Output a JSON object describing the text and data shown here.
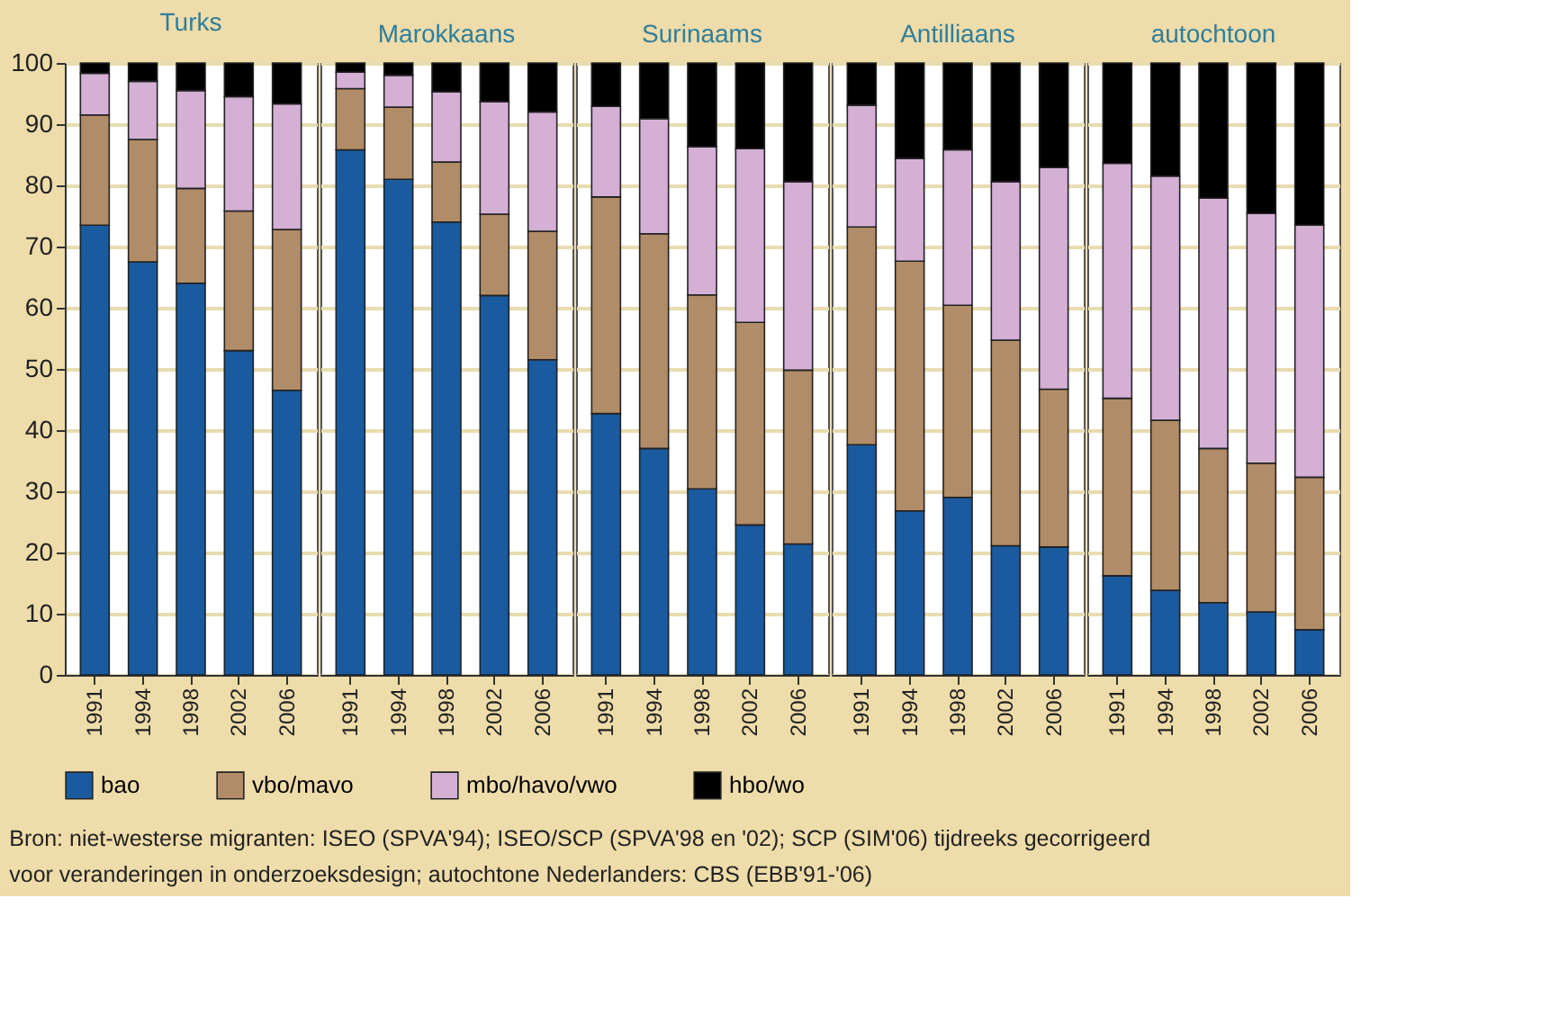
{
  "chart_data": [
    {
      "type": "bar",
      "stacked": true,
      "title": "Turks",
      "categories": [
        "1991",
        "1994",
        "1998",
        "2002",
        "2006"
      ],
      "ylim": [
        0,
        100
      ],
      "yticks": [
        0,
        10,
        20,
        30,
        40,
        50,
        60,
        70,
        80,
        90,
        100
      ],
      "grid": "y",
      "legend": "bottom",
      "annotations": [
        "Bron: niet-westerse migranten: ISEO (SPVA'94); ISEO/SCP (SPVA'98 en '02); SCP (SIM'06) tijdreeks gecorrigeerd voor veranderingen in onderzoeksdesign; autochtone Nederlanders: CBS (EBB'91-'06)"
      ],
      "series": [
        {
          "name": "bao",
          "color": "#1a5a9e",
          "values": [
            73.5,
            67.5,
            64,
            53,
            46.5
          ]
        },
        {
          "name": "vbo/mavo",
          "color": "#b08c68",
          "values": [
            18,
            20,
            15.5,
            22.8,
            26.3
          ]
        },
        {
          "name": "mbo/havo/vwo",
          "color": "#d4b0d4",
          "values": [
            6.8,
            9.5,
            16,
            18.7,
            20.5
          ]
        },
        {
          "name": "hbo/wo",
          "color": "#000000",
          "values": [
            1.7,
            3,
            4.5,
            5.5,
            6.7
          ]
        }
      ]
    },
    {
      "type": "bar",
      "stacked": true,
      "title": "Marokkaans",
      "categories": [
        "1991",
        "1994",
        "1998",
        "2002",
        "2006"
      ],
      "ylim": [
        0,
        100
      ],
      "yticks": [
        0,
        10,
        20,
        30,
        40,
        50,
        60,
        70,
        80,
        90,
        100
      ],
      "grid": "y",
      "legend": "bottom",
      "tick_labels": "x",
      "series": [
        {
          "name": "bao",
          "color": "#1a5a9e",
          "values": [
            85.8,
            81,
            74,
            62,
            51.5
          ]
        },
        {
          "name": "vbo/mavo",
          "color": "#b08c68",
          "values": [
            10,
            11.8,
            9.8,
            13.3,
            21
          ]
        },
        {
          "name": "mbo/havo/vwo",
          "color": "#d4b0d4",
          "values": [
            2.7,
            5.2,
            11.5,
            18.4,
            19.5
          ]
        },
        {
          "name": "hbo/wo",
          "color": "#000000",
          "values": [
            1.5,
            2,
            4.7,
            6.3,
            8
          ]
        }
      ]
    },
    {
      "type": "bar",
      "stacked": true,
      "title": "Surinaams",
      "categories": [
        "1991",
        "1994",
        "1998",
        "2002",
        "2006"
      ],
      "ylim": [
        0,
        100
      ],
      "yticks": [
        0,
        10,
        20,
        30,
        40,
        50,
        60,
        70,
        80,
        90,
        100
      ],
      "grid": "y",
      "legend": "bottom",
      "tick_labels": "x",
      "series": [
        {
          "name": "bao",
          "color": "#1a5a9e",
          "values": [
            42.7,
            37,
            30.4,
            24.5,
            21.4
          ]
        },
        {
          "name": "vbo/mavo",
          "color": "#b08c68",
          "values": [
            35.4,
            35.1,
            31.7,
            33.1,
            28.4
          ]
        },
        {
          "name": "mbo/havo/vwo",
          "color": "#d4b0d4",
          "values": [
            14.8,
            18.8,
            24.2,
            28.4,
            30.8
          ]
        },
        {
          "name": "hbo/wo",
          "color": "#000000",
          "values": [
            7.1,
            9.1,
            13.7,
            14,
            19.4
          ]
        }
      ]
    },
    {
      "type": "bar",
      "stacked": true,
      "title": "Antilliaans",
      "categories": [
        "1991",
        "1994",
        "1998",
        "2002",
        "2006"
      ],
      "ylim": [
        0,
        100
      ],
      "yticks": [
        0,
        10,
        20,
        30,
        40,
        50,
        60,
        70,
        80,
        90,
        100
      ],
      "grid": "y",
      "legend": "bottom",
      "tick_labels": "x",
      "series": [
        {
          "name": "bao",
          "color": "#1a5a9e",
          "values": [
            37.6,
            26.8,
            29,
            21.1,
            20.9
          ]
        },
        {
          "name": "vbo/mavo",
          "color": "#b08c68",
          "values": [
            35.6,
            40.8,
            31.4,
            33.6,
            25.8
          ]
        },
        {
          "name": "mbo/havo/vwo",
          "color": "#d4b0d4",
          "values": [
            19.9,
            16.8,
            25.4,
            25.9,
            36.2
          ]
        },
        {
          "name": "hbo/wo",
          "color": "#000000",
          "values": [
            6.9,
            15.6,
            14.2,
            19.4,
            17.1
          ]
        }
      ]
    },
    {
      "type": "bar",
      "stacked": true,
      "title": "autochtoon",
      "categories": [
        "1991",
        "1994",
        "1998",
        "2002",
        "2006"
      ],
      "ylim": [
        0,
        100
      ],
      "yticks": [
        0,
        10,
        20,
        30,
        40,
        50,
        60,
        70,
        80,
        90,
        100
      ],
      "grid": "y",
      "legend": "bottom",
      "tick_labels": "x",
      "series": [
        {
          "name": "bao",
          "color": "#1a5a9e",
          "values": [
            16.2,
            13.8,
            11.8,
            10.3,
            7.4
          ]
        },
        {
          "name": "vbo/mavo",
          "color": "#b08c68",
          "values": [
            29,
            27.8,
            25.2,
            24.3,
            24.9
          ]
        },
        {
          "name": "mbo/havo/vwo",
          "color": "#d4b0d4",
          "values": [
            38.4,
            39.9,
            40.9,
            40.8,
            41.2
          ]
        },
        {
          "name": "hbo/wo",
          "color": "#000000",
          "values": [
            16.4,
            18.5,
            22.1,
            24.6,
            26.5
          ]
        }
      ]
    }
  ]
}
